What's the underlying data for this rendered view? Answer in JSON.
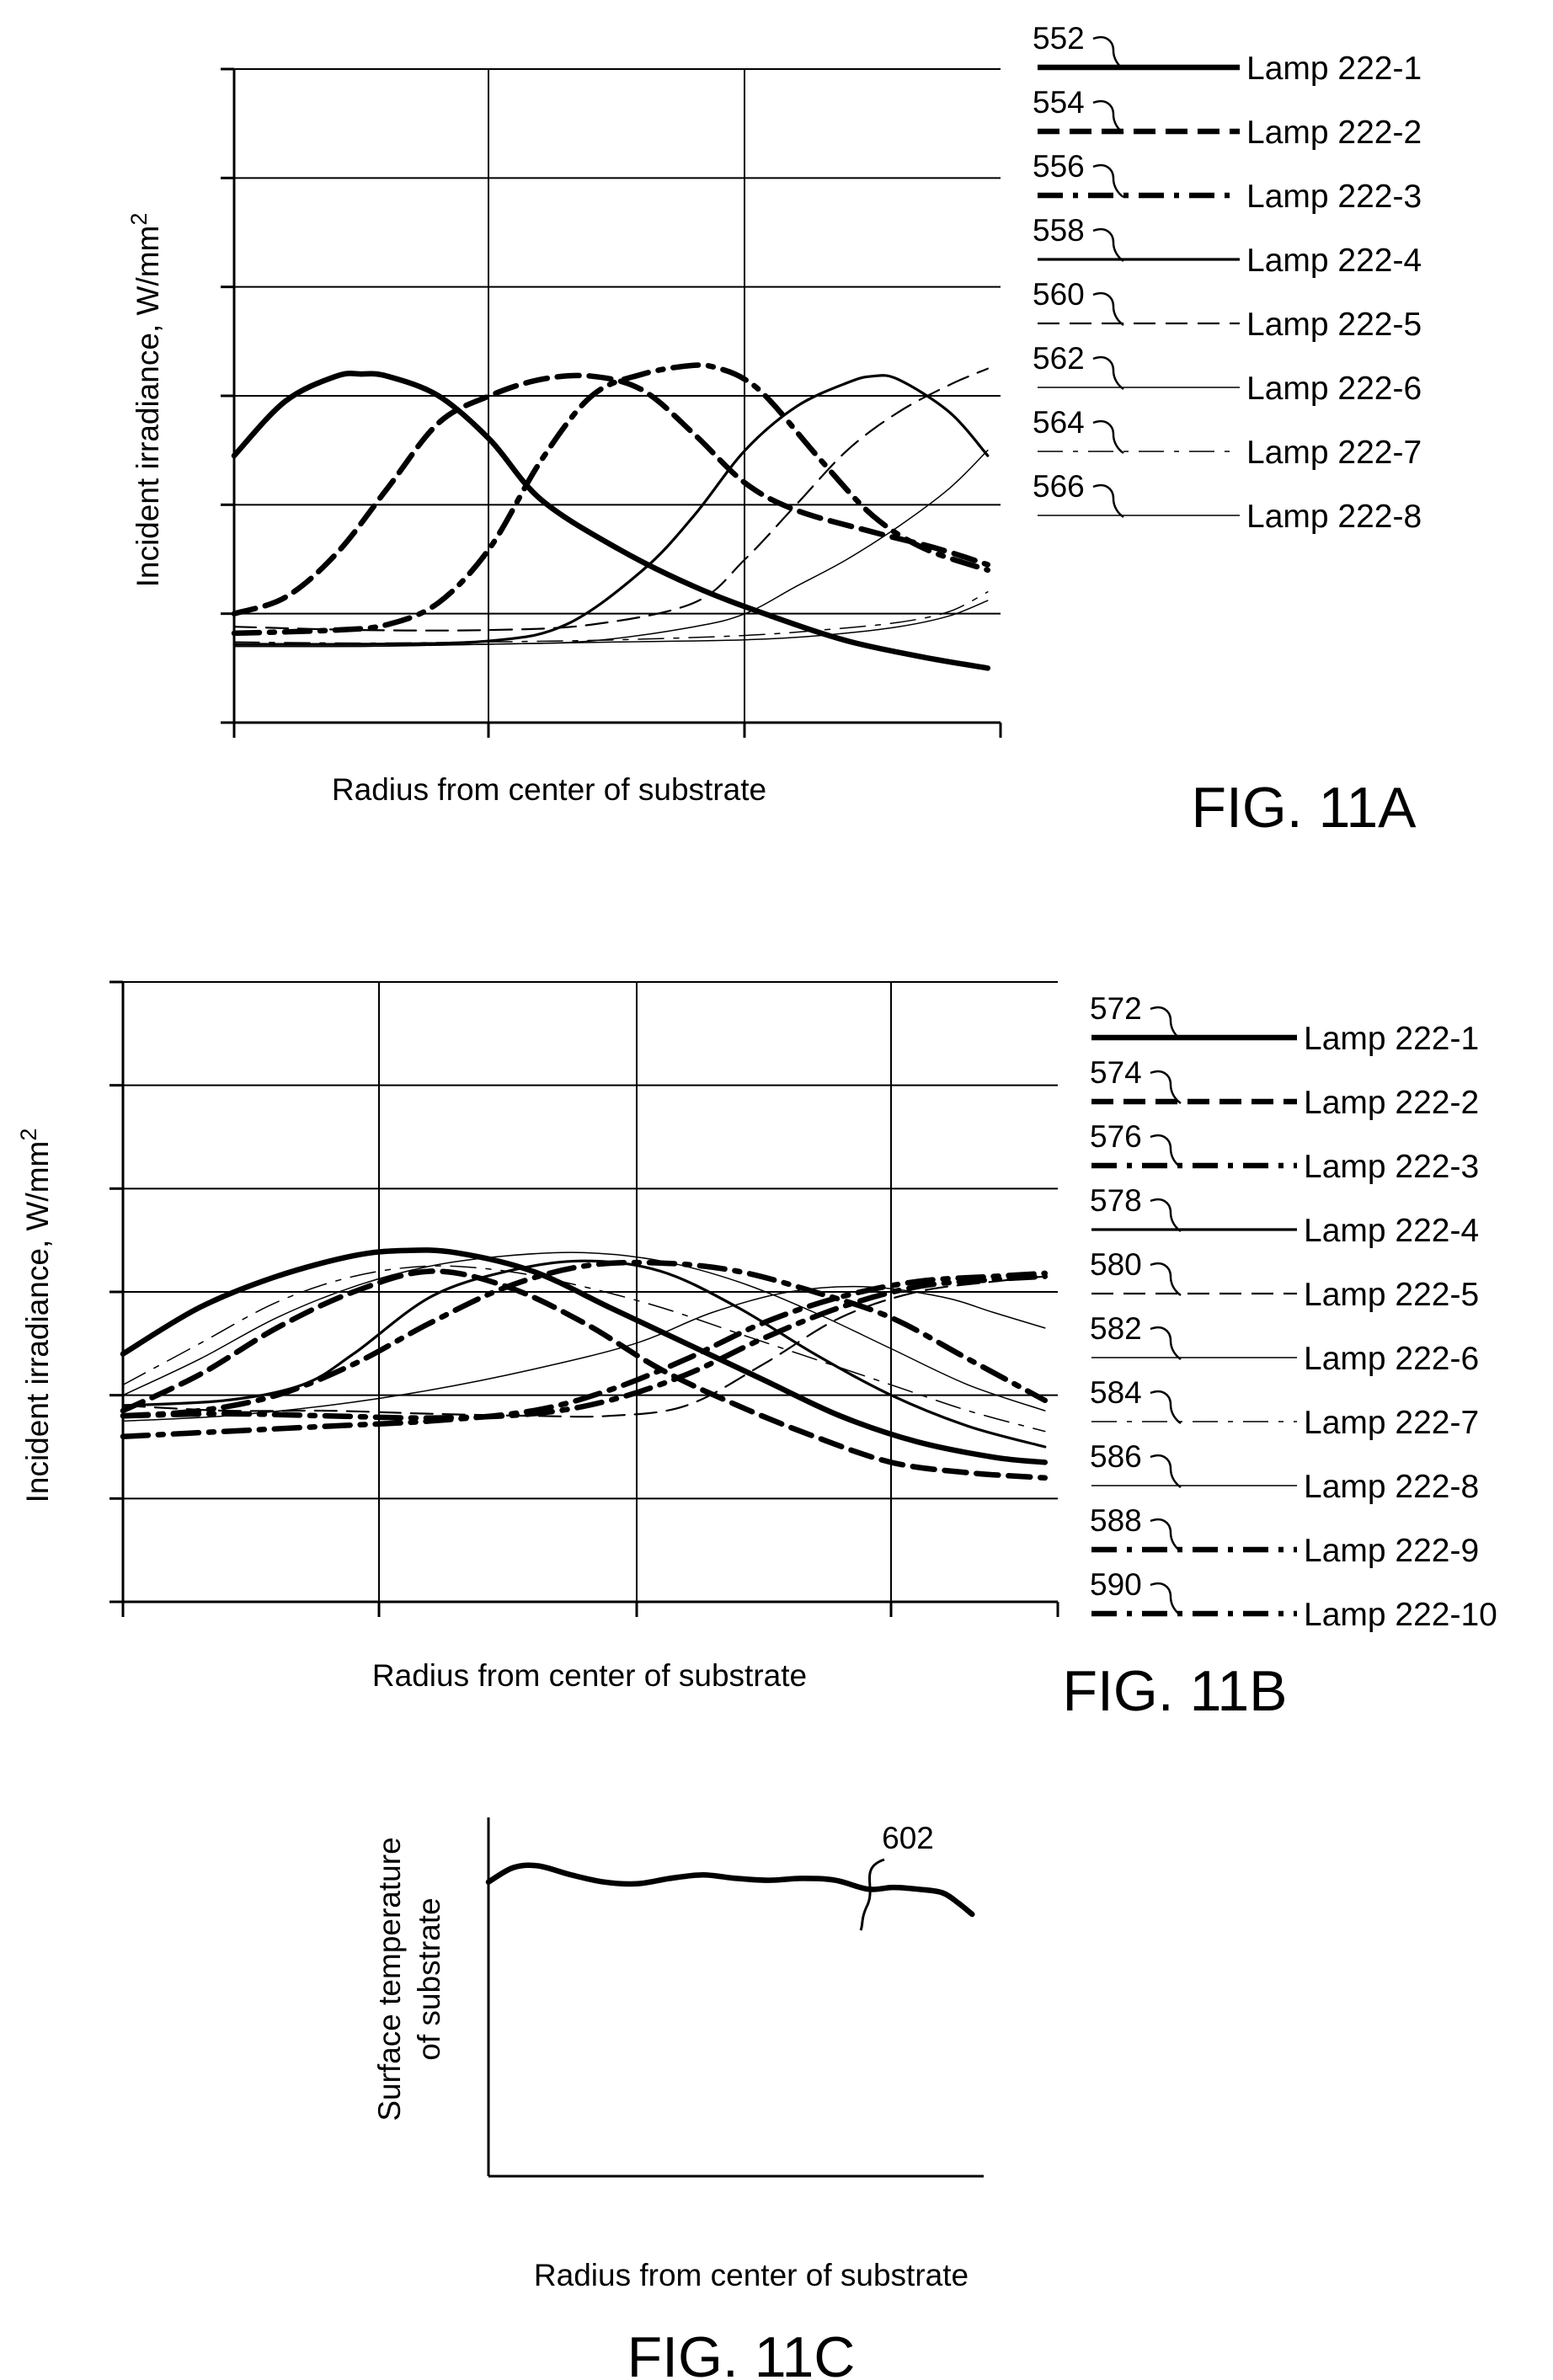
{
  "chart_data": [
    {
      "type": "line",
      "figure_label": "FIG. 11A",
      "xlabel": "Radius from center of substrate",
      "ylabel": "Incident irradiance, W/mm",
      "ylabel_sup": "2",
      "xlim": [
        0,
        3
      ],
      "ylim": [
        0,
        6
      ],
      "grid": true,
      "legend_position": "right",
      "series": [
        {
          "name": "Lamp 222-1",
          "ref": "552",
          "style": "solid",
          "weight": "heavy",
          "x": [
            0,
            0.2,
            0.4,
            0.5,
            0.6,
            0.8,
            1.0,
            1.2,
            1.5,
            1.8,
            2.1,
            2.4,
            2.7,
            2.95
          ],
          "y": [
            2.45,
            2.95,
            3.18,
            3.2,
            3.18,
            3.0,
            2.6,
            2.05,
            1.6,
            1.25,
            0.98,
            0.75,
            0.6,
            0.5
          ]
        },
        {
          "name": "Lamp 222-2",
          "ref": "554",
          "style": "dash",
          "weight": "heavy",
          "x": [
            0,
            0.2,
            0.4,
            0.6,
            0.8,
            1.0,
            1.2,
            1.4,
            1.6,
            1.8,
            2.0,
            2.2,
            2.5,
            2.75,
            2.95
          ],
          "y": [
            1.0,
            1.15,
            1.55,
            2.15,
            2.75,
            3.0,
            3.15,
            3.18,
            3.05,
            2.65,
            2.2,
            1.95,
            1.75,
            1.6,
            1.45
          ]
        },
        {
          "name": "Lamp 222-3",
          "ref": "556",
          "style": "dashdot",
          "weight": "heavy",
          "x": [
            0,
            0.4,
            0.6,
            0.8,
            1.0,
            1.2,
            1.4,
            1.6,
            1.8,
            1.9,
            2.0,
            2.1,
            2.3,
            2.5,
            2.7,
            2.95
          ],
          "y": [
            0.82,
            0.85,
            0.9,
            1.1,
            1.6,
            2.4,
            3.0,
            3.2,
            3.28,
            3.25,
            3.15,
            2.95,
            2.4,
            1.9,
            1.6,
            1.4
          ]
        },
        {
          "name": "Lamp 222-4",
          "ref": "558",
          "style": "solid",
          "weight": "medium",
          "x": [
            0,
            0.5,
            1.0,
            1.3,
            1.6,
            1.8,
            2.0,
            2.2,
            2.4,
            2.5,
            2.6,
            2.8,
            2.95
          ],
          "y": [
            0.72,
            0.72,
            0.75,
            0.9,
            1.4,
            1.9,
            2.5,
            2.9,
            3.12,
            3.18,
            3.15,
            2.85,
            2.45
          ]
        },
        {
          "name": "Lamp 222-5",
          "ref": "560",
          "style": "dash",
          "weight": "light",
          "x": [
            0,
            0.5,
            1.0,
            1.4,
            1.8,
            2.0,
            2.2,
            2.4,
            2.6,
            2.8,
            2.95
          ],
          "y": [
            0.88,
            0.85,
            0.85,
            0.9,
            1.1,
            1.5,
            2.0,
            2.5,
            2.85,
            3.1,
            3.25
          ]
        },
        {
          "name": "Lamp 222-6",
          "ref": "562",
          "style": "solid",
          "weight": "thin",
          "x": [
            0,
            0.5,
            1.0,
            1.4,
            1.8,
            2.0,
            2.2,
            2.4,
            2.6,
            2.8,
            2.95
          ],
          "y": [
            0.7,
            0.7,
            0.72,
            0.75,
            0.88,
            1.0,
            1.25,
            1.5,
            1.8,
            2.15,
            2.5
          ]
        },
        {
          "name": "Lamp 222-7",
          "ref": "564",
          "style": "dashdot",
          "weight": "thin",
          "x": [
            0,
            0.5,
            1.0,
            1.5,
            2.0,
            2.3,
            2.6,
            2.8,
            2.95
          ],
          "y": [
            0.74,
            0.73,
            0.74,
            0.76,
            0.8,
            0.85,
            0.92,
            1.02,
            1.2
          ]
        },
        {
          "name": "Lamp 222-8",
          "ref": "566",
          "style": "solid",
          "weight": "thin",
          "x": [
            0,
            0.5,
            1.0,
            1.5,
            2.0,
            2.3,
            2.6,
            2.8,
            2.95
          ],
          "y": [
            0.7,
            0.7,
            0.72,
            0.74,
            0.76,
            0.8,
            0.88,
            0.98,
            1.12
          ]
        }
      ]
    },
    {
      "type": "line",
      "figure_label": "FIG. 11B",
      "xlabel": "Radius from center of substrate",
      "ylabel": "Incident irradiance, W/mm",
      "ylabel_sup": "2",
      "xlim": [
        0,
        3.65
      ],
      "ylim": [
        0,
        6
      ],
      "grid": true,
      "legend_position": "right",
      "series": [
        {
          "name": "Lamp 222-1",
          "ref": "572",
          "style": "solid",
          "weight": "heavy",
          "x": [
            0,
            0.3,
            0.6,
            0.9,
            1.1,
            1.3,
            1.6,
            1.9,
            2.2,
            2.5,
            2.8,
            3.1,
            3.4,
            3.6
          ],
          "y": [
            2.4,
            2.85,
            3.15,
            3.35,
            3.4,
            3.38,
            3.2,
            2.85,
            2.5,
            2.15,
            1.8,
            1.55,
            1.4,
            1.35
          ]
        },
        {
          "name": "Lamp 222-2",
          "ref": "574",
          "style": "dash",
          "weight": "heavy",
          "x": [
            0,
            0.3,
            0.6,
            0.9,
            1.2,
            1.5,
            1.8,
            2.1,
            2.4,
            2.7,
            3.0,
            3.3,
            3.6
          ],
          "y": [
            1.85,
            2.2,
            2.65,
            3.0,
            3.2,
            3.05,
            2.7,
            2.25,
            1.9,
            1.6,
            1.35,
            1.25,
            1.2
          ]
        },
        {
          "name": "Lamp 222-3",
          "ref": "576",
          "style": "dashdot",
          "weight": "heavy",
          "x": [
            0,
            0.3,
            0.6,
            0.9,
            1.2,
            1.5,
            1.8,
            2.1,
            2.4,
            2.7,
            3.0,
            3.3,
            3.6
          ],
          "y": [
            1.8,
            1.85,
            2.0,
            2.3,
            2.7,
            3.05,
            3.25,
            3.28,
            3.2,
            3.0,
            2.75,
            2.35,
            1.95
          ]
        },
        {
          "name": "Lamp 222-4",
          "ref": "578",
          "style": "solid",
          "weight": "medium",
          "x": [
            0,
            0.4,
            0.7,
            0.9,
            1.2,
            1.5,
            1.8,
            2.1,
            2.4,
            2.7,
            3.0,
            3.3,
            3.6
          ],
          "y": [
            1.9,
            1.95,
            2.1,
            2.4,
            2.95,
            3.2,
            3.3,
            3.2,
            2.85,
            2.4,
            2.0,
            1.7,
            1.5
          ]
        },
        {
          "name": "Lamp 222-5",
          "ref": "580",
          "style": "dash",
          "weight": "light",
          "x": [
            0,
            0.4,
            0.8,
            1.2,
            1.6,
            1.9,
            2.2,
            2.5,
            2.8,
            3.1,
            3.4,
            3.6
          ],
          "y": [
            1.9,
            1.85,
            1.85,
            1.82,
            1.8,
            1.8,
            1.9,
            2.3,
            2.75,
            3.0,
            3.1,
            3.15
          ]
        },
        {
          "name": "Lamp 222-6",
          "ref": "582",
          "style": "solid",
          "weight": "thin",
          "x": [
            0,
            0.4,
            0.8,
            1.2,
            1.6,
            2.0,
            2.3,
            2.6,
            2.9,
            3.2,
            3.4,
            3.6
          ],
          "y": [
            1.75,
            1.8,
            1.9,
            2.05,
            2.25,
            2.5,
            2.8,
            3.0,
            3.05,
            2.95,
            2.8,
            2.65
          ]
        },
        {
          "name": "Lamp 222-7",
          "ref": "584",
          "style": "dashdot",
          "weight": "thin",
          "x": [
            0,
            0.3,
            0.6,
            0.9,
            1.2,
            1.5,
            1.8,
            2.1,
            2.4,
            2.7,
            3.0,
            3.3,
            3.6
          ],
          "y": [
            2.1,
            2.5,
            2.9,
            3.15,
            3.25,
            3.2,
            3.05,
            2.85,
            2.6,
            2.35,
            2.1,
            1.85,
            1.65
          ]
        },
        {
          "name": "Lamp 222-8",
          "ref": "586",
          "style": "solid",
          "weight": "thin",
          "x": [
            0,
            0.3,
            0.6,
            0.9,
            1.2,
            1.5,
            1.8,
            2.1,
            2.4,
            2.7,
            3.0,
            3.3,
            3.6
          ],
          "y": [
            2.0,
            2.35,
            2.75,
            3.05,
            3.25,
            3.35,
            3.38,
            3.3,
            3.1,
            2.8,
            2.45,
            2.1,
            1.85
          ]
        },
        {
          "name": "Lamp 222-9",
          "ref": "588",
          "style": "dashdot",
          "weight": "heavy",
          "x": [
            0,
            0.4,
            0.8,
            1.2,
            1.6,
            1.9,
            2.2,
            2.5,
            2.8,
            3.1,
            3.4,
            3.6
          ],
          "y": [
            1.8,
            1.82,
            1.8,
            1.78,
            1.82,
            1.95,
            2.2,
            2.55,
            2.85,
            3.05,
            3.12,
            3.15
          ]
        },
        {
          "name": "Lamp 222-10",
          "ref": "590",
          "style": "dashdot",
          "weight": "heavy",
          "x": [
            0,
            0.4,
            0.8,
            1.2,
            1.6,
            1.9,
            2.2,
            2.5,
            2.8,
            3.1,
            3.4,
            3.6
          ],
          "y": [
            1.6,
            1.65,
            1.7,
            1.75,
            1.85,
            2.05,
            2.35,
            2.7,
            2.95,
            3.1,
            3.15,
            3.18
          ]
        }
      ]
    },
    {
      "type": "line",
      "figure_label": "FIG. 11C",
      "xlabel": "Radius from center of substrate",
      "ylabel": [
        "Surface  temperature",
        "of substrate"
      ],
      "xlim": [
        0,
        3
      ],
      "ylim": [
        0,
        10
      ],
      "grid": false,
      "annotation": "602",
      "series": [
        {
          "name": "",
          "ref": "602",
          "style": "solid",
          "weight": "heavy",
          "x": [
            0,
            0.15,
            0.3,
            0.5,
            0.7,
            0.9,
            1.1,
            1.3,
            1.5,
            1.7,
            1.9,
            2.1,
            2.3,
            2.45,
            2.6,
            2.75,
            2.85,
            2.93
          ],
          "y": [
            8.2,
            8.6,
            8.65,
            8.4,
            8.2,
            8.15,
            8.3,
            8.4,
            8.3,
            8.25,
            8.3,
            8.25,
            8.0,
            8.05,
            8.0,
            7.9,
            7.6,
            7.3
          ]
        }
      ]
    }
  ]
}
